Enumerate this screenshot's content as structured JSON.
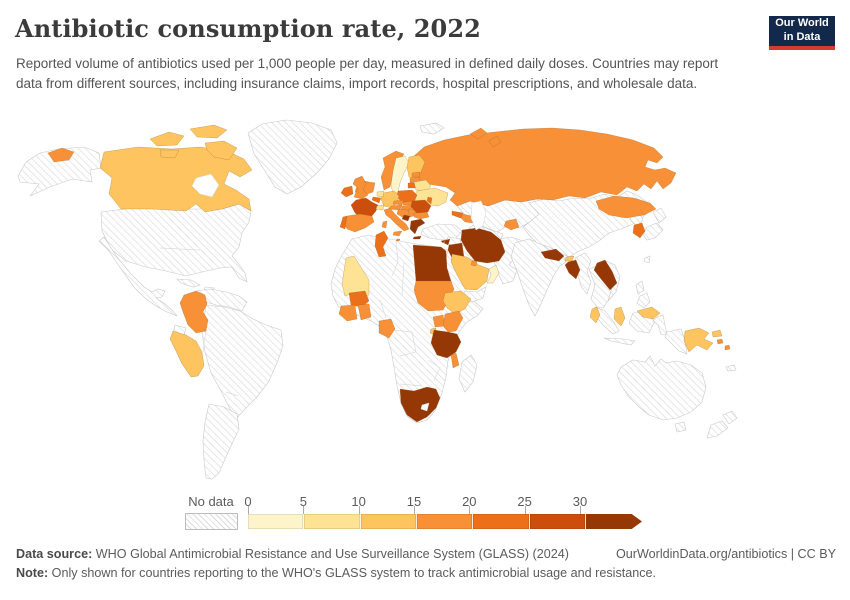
{
  "header": {
    "title": "Antibiotic consumption rate, 2022",
    "subtitle": "Reported volume of antibiotics used per 1,000 people per day, measured in defined daily doses. Countries may report data from different sources, including insurance claims, import records, hospital prescriptions, and wholesale data.",
    "logo": {
      "line1": "Our World",
      "line2": "in Data"
    }
  },
  "legend": {
    "no_data_label": "No data",
    "ticks": [
      "0",
      "5",
      "10",
      "15",
      "20",
      "25",
      "30"
    ]
  },
  "footer": {
    "source_label": "Data source:",
    "source_text": " WHO Global Antimicrobial Resistance and Use Surveillance System (GLASS) (2024)",
    "link_text": "OurWorldinData.org/antibiotics | CC BY",
    "note_label": "Note:",
    "note_text": " Only shown for countries reporting to the WHO's GLASS system to track antimicrobial usage and resistance."
  },
  "colors": {
    "logo_bg": "#12294b",
    "logo_stripe": "#d63b2f",
    "title": "#3b3b3b",
    "body_text": "#555555",
    "nodata_border": "#c9c9c9",
    "hatch_line": "#dcdcdc"
  },
  "chart_data": {
    "type": "choropleth_map",
    "title": "Antibiotic consumption rate, 2022",
    "unit": "defined daily doses per 1,000 people per day",
    "legend_buckets": [
      "0-5",
      "5-10",
      "10-15",
      "15-20",
      "20-25",
      "25-30",
      "30+"
    ],
    "palette": {
      "0-5": "#fdf5c9",
      "5-10": "#fee394",
      "10-15": "#fdc45f",
      "15-20": "#f89038",
      "20-25": "#ec701a",
      "25-30": "#cc4e0c",
      "30+": "#963706"
    },
    "countries": {
      "Canada": "10-15",
      "Iceland": "15-20",
      "Colombia": "15-20",
      "Peru": "10-15",
      "Norway": "15-20",
      "Sweden": "0-5",
      "Finland": "10-15",
      "Denmark": "5-10",
      "Estonia": "15-20",
      "Latvia": "15-20",
      "Lithuania": "20-25",
      "Belarus": "5-10",
      "Ukraine": "5-10",
      "Moldova": "20-25",
      "Poland": "20-25",
      "Germany": "10-15",
      "Netherlands": "5-10",
      "Belgium": "20-25",
      "United Kingdom": "15-20",
      "Ireland": "20-25",
      "France": "25-30",
      "Spain": "15-20",
      "Portugal": "20-25",
      "Switzerland": "5-10",
      "Austria": "15-20",
      "Czechia": "15-20",
      "Slovakia": "15-20",
      "Hungary": "15-20",
      "Croatia": "15-20",
      "Serbia": "15-20",
      "Montenegro": "30+",
      "Greece": "30+",
      "Bulgaria": "15-20",
      "Romania": "25-30",
      "Italy": "15-20",
      "Malta": "15-20",
      "Cyprus": "30+",
      "Russia": "15-20",
      "Georgia": "20-25",
      "Azerbaijan": "15-20",
      "Lebanon": "30+",
      "Jordan": "30+",
      "Saudi Arabia": "10-15",
      "Oman": "0-5",
      "Kuwait": "15-20",
      "Iran": "30+",
      "Tajikistan": "15-20",
      "Mongolia": "15-20",
      "South Korea": "20-25",
      "Nepal": "30+",
      "Bhutan": "10-15",
      "Bangladesh": "30+",
      "Laos": "30+",
      "Sri Lanka": "10-15",
      "Malaysia": "10-15",
      "Papua New Guinea": "10-15",
      "Solomon Islands": "15-20",
      "Tunisia": "20-25",
      "Egypt": "30+",
      "Sudan": "15-20",
      "Mali": "5-10",
      "Burkina Faso": "20-25",
      "Cote d'Ivoire": "15-20",
      "Ghana": "15-20",
      "Gabon": "15-20",
      "Ethiopia": "10-15",
      "Uganda": "15-20",
      "Kenya": "15-20",
      "Rwanda": "10-15",
      "Tanzania": "30+",
      "Malawi": "15-20",
      "South Africa": "30+",
      "United States": "no-data",
      "Greenland": "no-data",
      "Mexico and Central America": "no-data",
      "Caribbean": "no-data",
      "Venezuela and Guianas": "no-data",
      "Brazil": "no-data",
      "Ecuador": "no-data",
      "Argentina and Chile": "no-data",
      "Africa (other)": "no-data",
      "Madagascar": "no-data",
      "Turkey": "no-data",
      "Syria": "no-data",
      "Iraq": "no-data",
      "Israel": "no-data",
      "Armenia": "no-data",
      "Yemen": "no-data",
      "Kazakhstan": "no-data",
      "Turkmenistan and Uzbekistan": "no-data",
      "Afghanistan and Pakistan": "no-data",
      "India": "no-data",
      "China": "no-data",
      "North Korea": "no-data",
      "Japan": "no-data",
      "Taiwan": "no-data",
      "Myanmar": "no-data",
      "Thailand and Indochina": "no-data",
      "Vietnam": "no-data",
      "Philippines": "no-data",
      "Indonesia": "no-data",
      "Australia": "no-data",
      "New Zealand": "no-data",
      "New Caledonia": "no-data",
      "Svalbard": "no-data"
    }
  }
}
